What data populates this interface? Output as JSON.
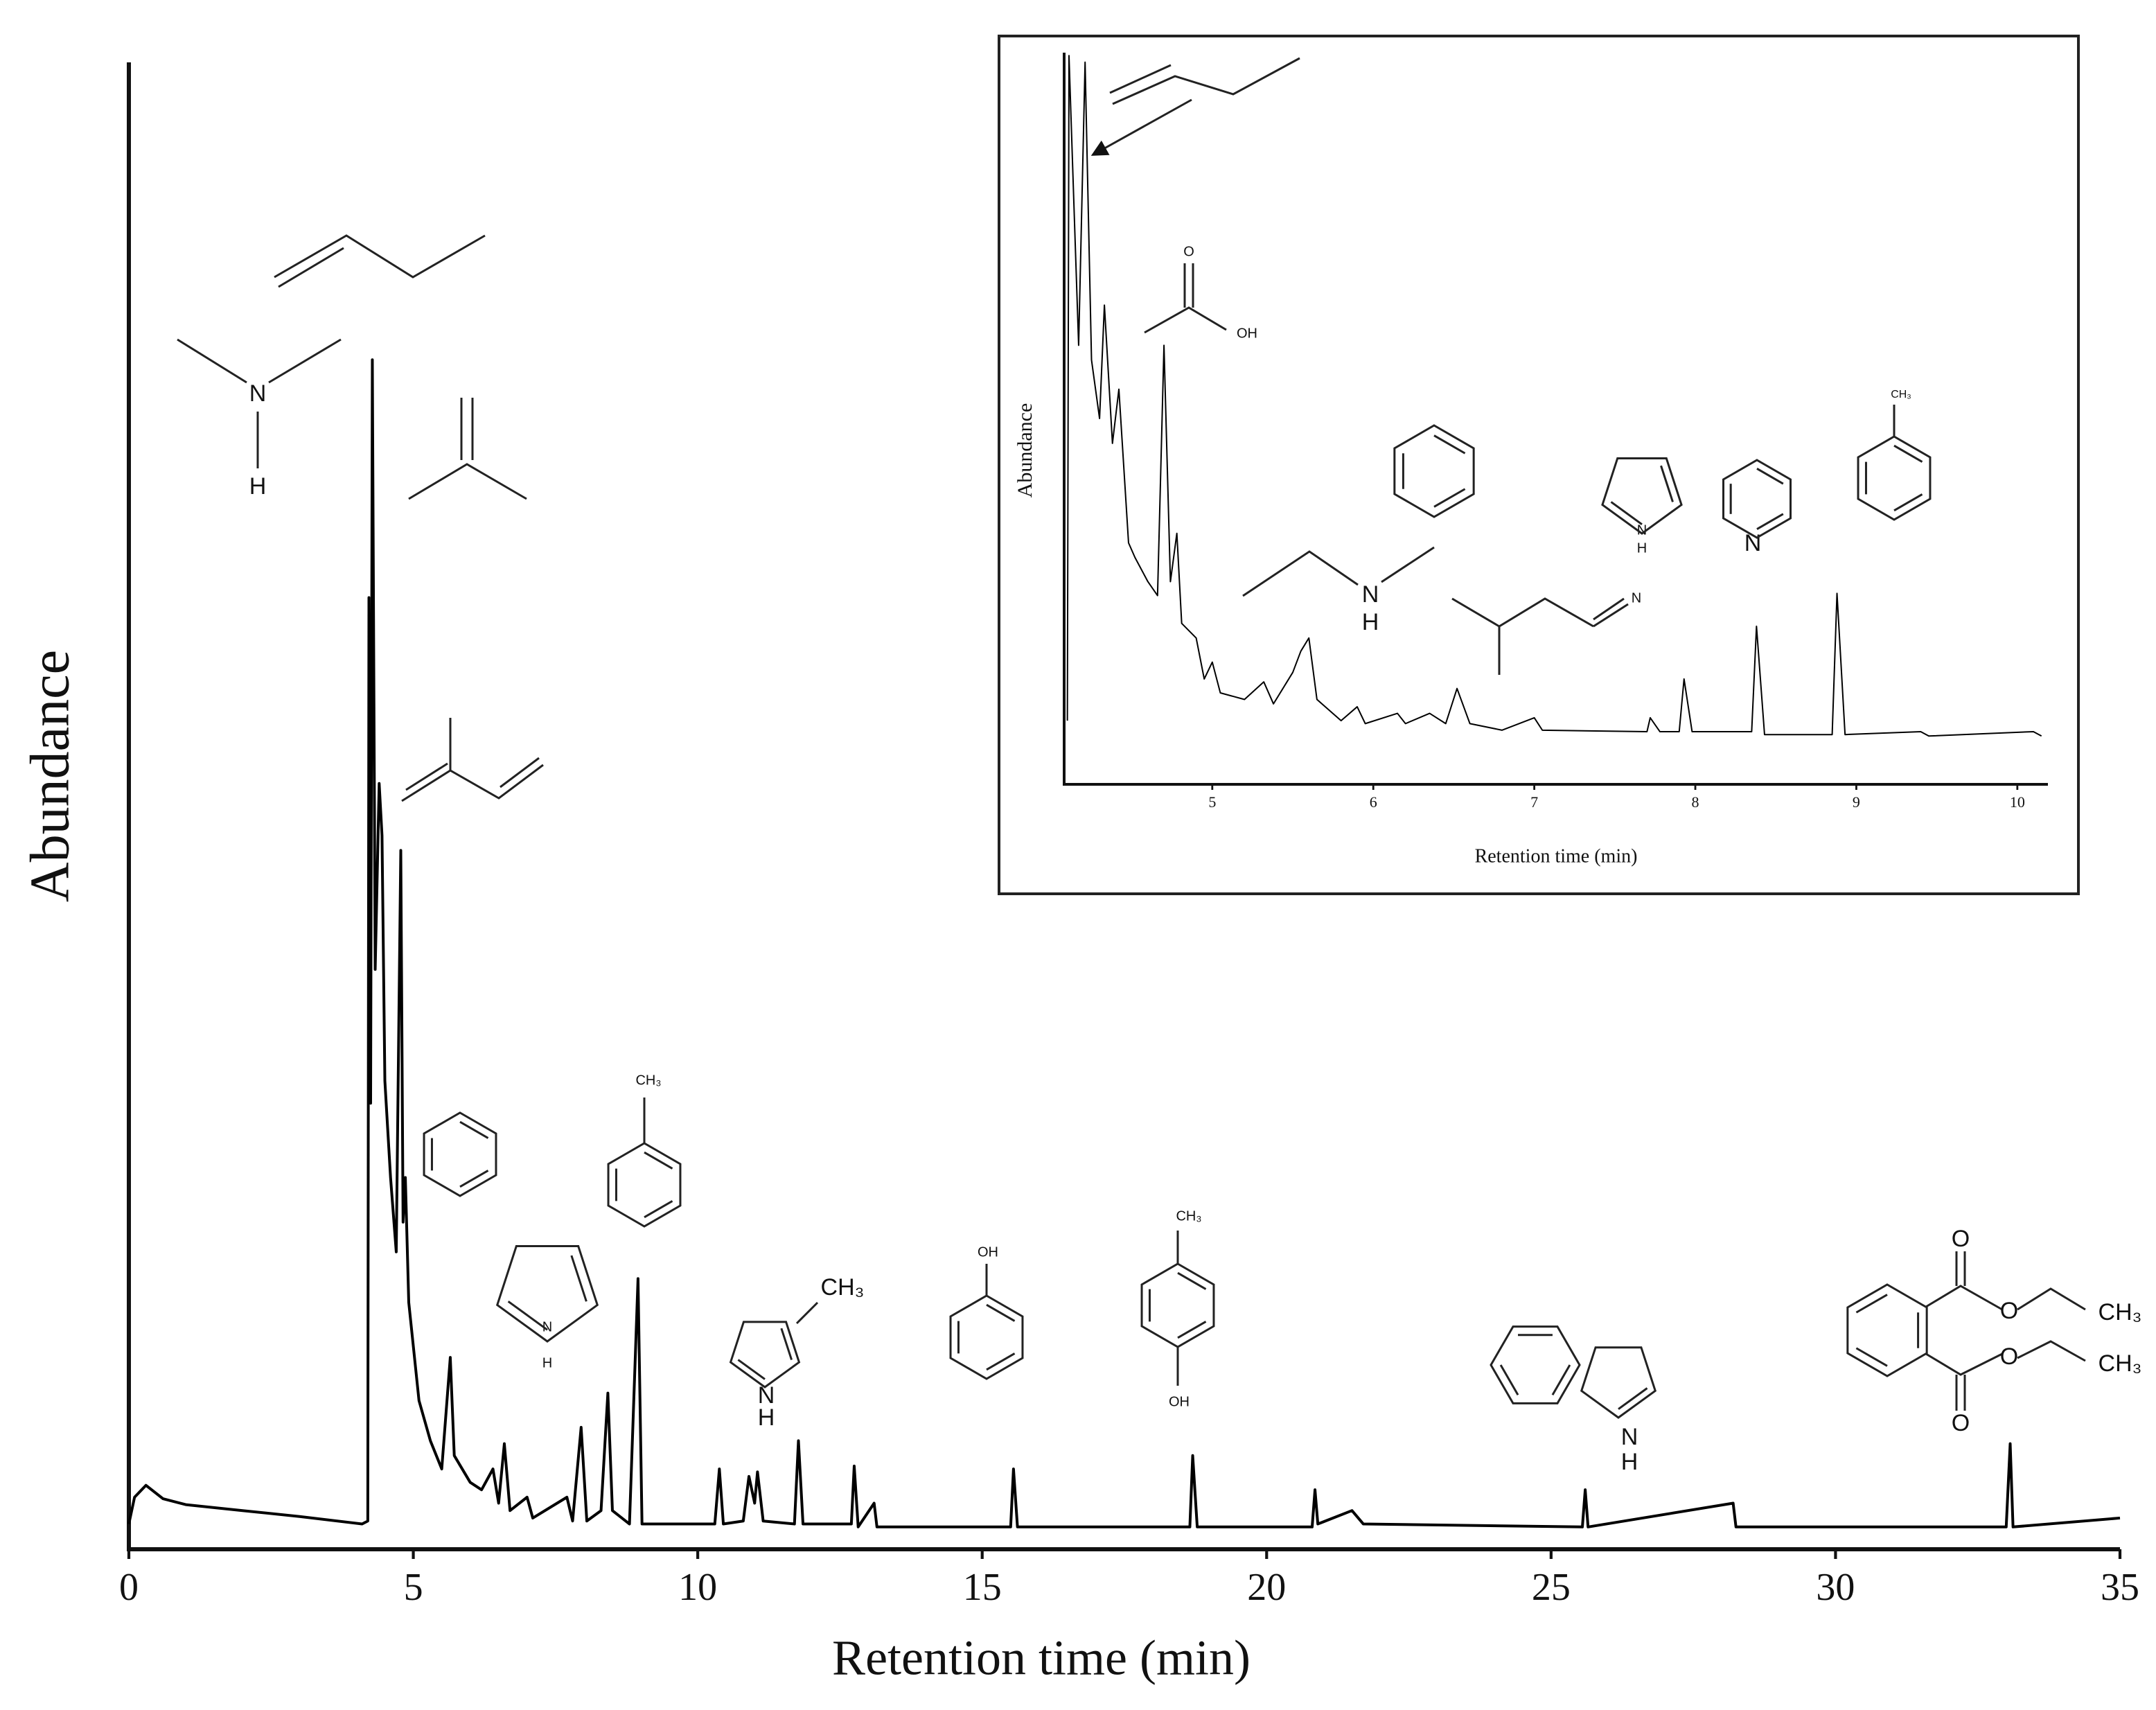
{
  "chart_data": [
    {
      "type": "line",
      "xlabel": "Retention time (min)",
      "ylabel": "Abundance",
      "color": "#000000",
      "xlim": [
        0,
        35
      ],
      "xticks": [
        0,
        5,
        10,
        15,
        20,
        25,
        30,
        35
      ],
      "ylim": [
        0,
        100
      ],
      "x": [
        0,
        0.1,
        0.3,
        0.6,
        1,
        2,
        3,
        4.1,
        4.2,
        4.22,
        4.25,
        4.28,
        4.33,
        4.4,
        4.45,
        4.5,
        4.6,
        4.7,
        4.78,
        4.82,
        4.86,
        4.92,
        5.1,
        5.3,
        5.5,
        5.65,
        5.72,
        6,
        6.2,
        6.4,
        6.5,
        6.6,
        6.7,
        7,
        7.1,
        7.7,
        7.8,
        7.95,
        8.05,
        8.3,
        8.42,
        8.5,
        8.8,
        8.95,
        9.02,
        10.3,
        10.38,
        10.45,
        10.8,
        10.9,
        11,
        11.05,
        11.15,
        11.7,
        11.77,
        11.85,
        12.7,
        12.75,
        12.82,
        13.1,
        13.15,
        15.5,
        15.55,
        15.62,
        18.65,
        18.7,
        18.78,
        20.8,
        20.85,
        20.9,
        21.5,
        21.7,
        25.55,
        25.6,
        25.65,
        28.2,
        28.25,
        33,
        33.07,
        33.12,
        35
      ],
      "values": [
        1.7,
        3.5,
        4.3,
        3.4,
        3,
        2.6,
        2.2,
        1.7,
        1.9,
        64,
        30,
        80,
        39,
        51.5,
        48,
        31.5,
        25,
        20,
        47,
        22,
        25,
        16.6,
        10,
        7.3,
        5.4,
        12.9,
        6.3,
        4.5,
        4,
        5.4,
        3.1,
        7.1,
        2.6,
        3.5,
        2.1,
        3.5,
        1.9,
        8.2,
        1.9,
        2.6,
        10.5,
        2.6,
        1.7,
        18.2,
        1.7,
        1.7,
        5.4,
        1.7,
        1.9,
        4.9,
        3.1,
        5.2,
        1.9,
        1.7,
        7.3,
        1.7,
        1.7,
        5.6,
        1.5,
        3.1,
        1.5,
        1.5,
        5.4,
        1.5,
        1.5,
        6.3,
        1.5,
        1.5,
        4,
        1.7,
        2.6,
        1.7,
        1.5,
        4,
        1.5,
        3.1,
        1.5,
        1.5,
        7.1,
        1.5,
        2.1
      ],
      "annotations": [
        "N",
        "H",
        "CH₃",
        "N",
        "H",
        "CH₃",
        "N",
        "H",
        "OH",
        "CH₃",
        "OH",
        "N",
        "H",
        "O",
        "O",
        "CH₃",
        "O",
        "O",
        "CH₃"
      ]
    },
    {
      "type": "line",
      "xlabel": "Retention time (min)",
      "ylabel": "Abundance",
      "color": "#000000",
      "xlim": [
        4.08,
        10.19
      ],
      "xticks": [
        5,
        6,
        7,
        8,
        9,
        10
      ],
      "ylim": [
        0,
        100
      ],
      "x": [
        4.1,
        4.11,
        4.14,
        4.17,
        4.21,
        4.25,
        4.3,
        4.33,
        4.38,
        4.42,
        4.48,
        4.52,
        4.6,
        4.66,
        4.7,
        4.74,
        4.78,
        4.81,
        4.9,
        4.95,
        5,
        5.05,
        5.2,
        5.32,
        5.38,
        5.5,
        5.55,
        5.6,
        5.65,
        5.8,
        5.9,
        5.95,
        6.15,
        6.2,
        6.35,
        6.45,
        6.52,
        6.6,
        6.8,
        7,
        7.05,
        7.7,
        7.72,
        7.78,
        7.9,
        7.93,
        7.98,
        8.35,
        8.38,
        8.43,
        8.85,
        8.88,
        8.93,
        9.4,
        9.45,
        10.1,
        10.15
      ],
      "values": [
        8.7,
        99.6,
        79.7,
        60,
        98.7,
        58,
        50,
        65.5,
        46.6,
        54,
        33,
        31,
        27.7,
        25.8,
        60,
        27.7,
        34.3,
        22,
        20,
        14.4,
        16.7,
        12.5,
        11.6,
        14,
        11,
        15.3,
        18.2,
        20,
        11.6,
        8.7,
        10.6,
        8.3,
        9.7,
        8.3,
        9.7,
        8.3,
        13.1,
        8.3,
        7.4,
        9.1,
        7.4,
        7.2,
        9.1,
        7.2,
        7.2,
        14.4,
        7.2,
        7.2,
        21.6,
        6.8,
        6.8,
        26.1,
        6.8,
        7.2,
        6.6,
        7.2,
        6.6
      ],
      "annotations": [
        "O",
        "OH",
        "N",
        "H",
        "N",
        "N",
        "H",
        "N",
        "CH₃"
      ]
    }
  ]
}
